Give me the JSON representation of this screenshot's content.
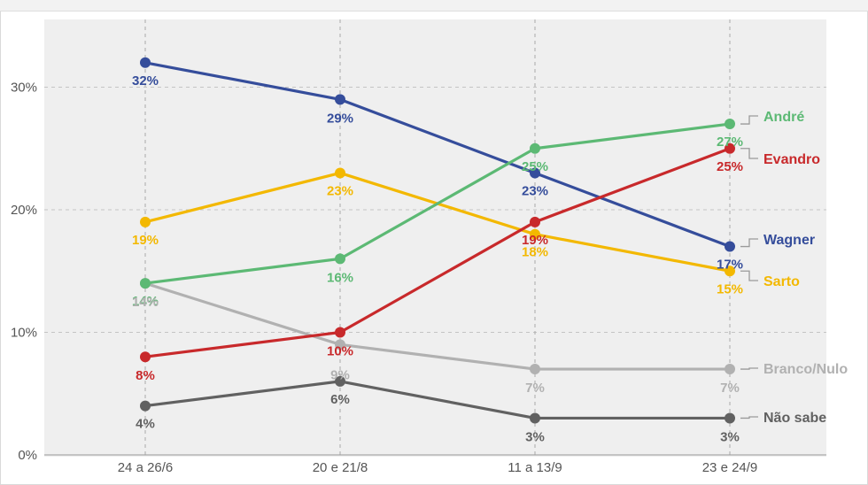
{
  "chart_data": {
    "type": "line",
    "x": [
      "24 a 26/6",
      "20 e 21/8",
      "11 a 13/9",
      "23 e 24/9"
    ],
    "ylim": [
      0,
      35
    ],
    "yticks": [
      "0%",
      "10%",
      "20%",
      "30%"
    ],
    "ytick_values": [
      0,
      10,
      20,
      30
    ],
    "grid": true,
    "legend_position": "right (end-of-line labels)",
    "series": [
      {
        "name": "André",
        "color": "#5cb974",
        "values": [
          14,
          16,
          25,
          27
        ],
        "labels": [
          "14%",
          "16%",
          "25%",
          "27%"
        ]
      },
      {
        "name": "Evandro",
        "color": "#c8292b",
        "values": [
          8,
          10,
          19,
          25
        ],
        "labels": [
          "8%",
          "10%",
          "19%",
          "25%"
        ]
      },
      {
        "name": "Wagner",
        "color": "#354d9b",
        "values": [
          32,
          29,
          23,
          17
        ],
        "labels": [
          "32%",
          "29%",
          "23%",
          "17%"
        ]
      },
      {
        "name": "Sarto",
        "color": "#f3b800",
        "values": [
          19,
          23,
          18,
          15
        ],
        "labels": [
          "19%",
          "23%",
          "18%",
          "15%"
        ]
      },
      {
        "name": "Branco/Nulo",
        "color": "#b1b1b1",
        "values": [
          14,
          9,
          7,
          7
        ],
        "labels": [
          "14%",
          "9%",
          "7%",
          "7%"
        ]
      },
      {
        "name": "Não sabe",
        "color": "#616161",
        "values": [
          4,
          6,
          3,
          3
        ],
        "labels": [
          "4%",
          "6%",
          "3%",
          "3%"
        ]
      }
    ]
  }
}
